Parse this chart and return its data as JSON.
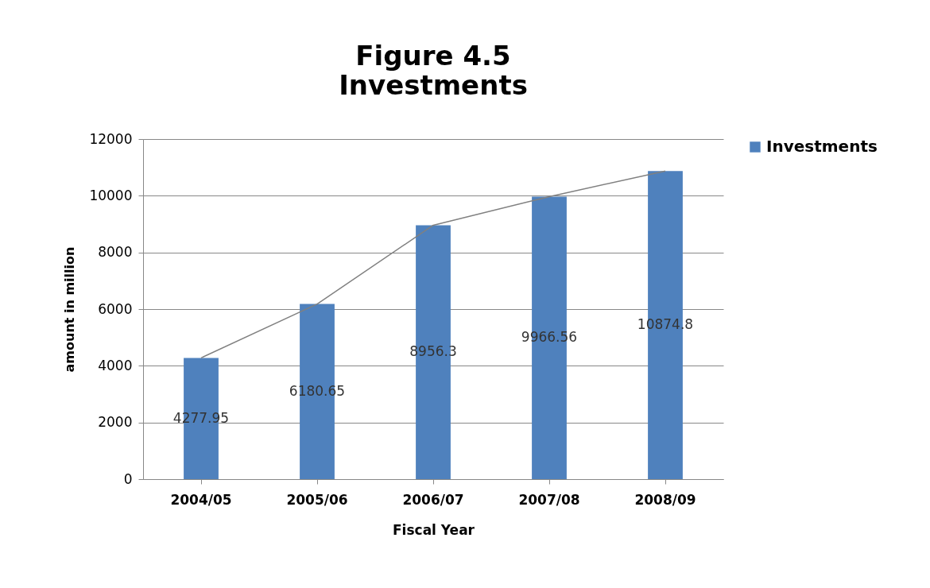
{
  "chart_data": {
    "type": "bar",
    "title": "Figure 4.5",
    "subtitle": "Investments",
    "xlabel": "Fiscal Year",
    "ylabel": "amount in million",
    "categories": [
      "2004/05",
      "2005/06",
      "2006/07",
      "2007/08",
      "2008/09"
    ],
    "series": [
      {
        "name": "Investments",
        "color": "#4f81bd",
        "values": [
          4277.95,
          6180.65,
          8956.3,
          9966.56,
          10874.8
        ],
        "value_labels": [
          "4277.95",
          "6180.65",
          "8956.3",
          "9966.56",
          "10874.8"
        ]
      },
      {
        "type": "line",
        "color": "#808080",
        "values": [
          4280,
          6180,
          8960,
          9970,
          10870
        ]
      }
    ],
    "ylim": [
      0,
      12000
    ],
    "yticks": [
      0,
      2000,
      4000,
      6000,
      8000,
      10000,
      12000
    ],
    "grid": "y",
    "legend": "right"
  }
}
